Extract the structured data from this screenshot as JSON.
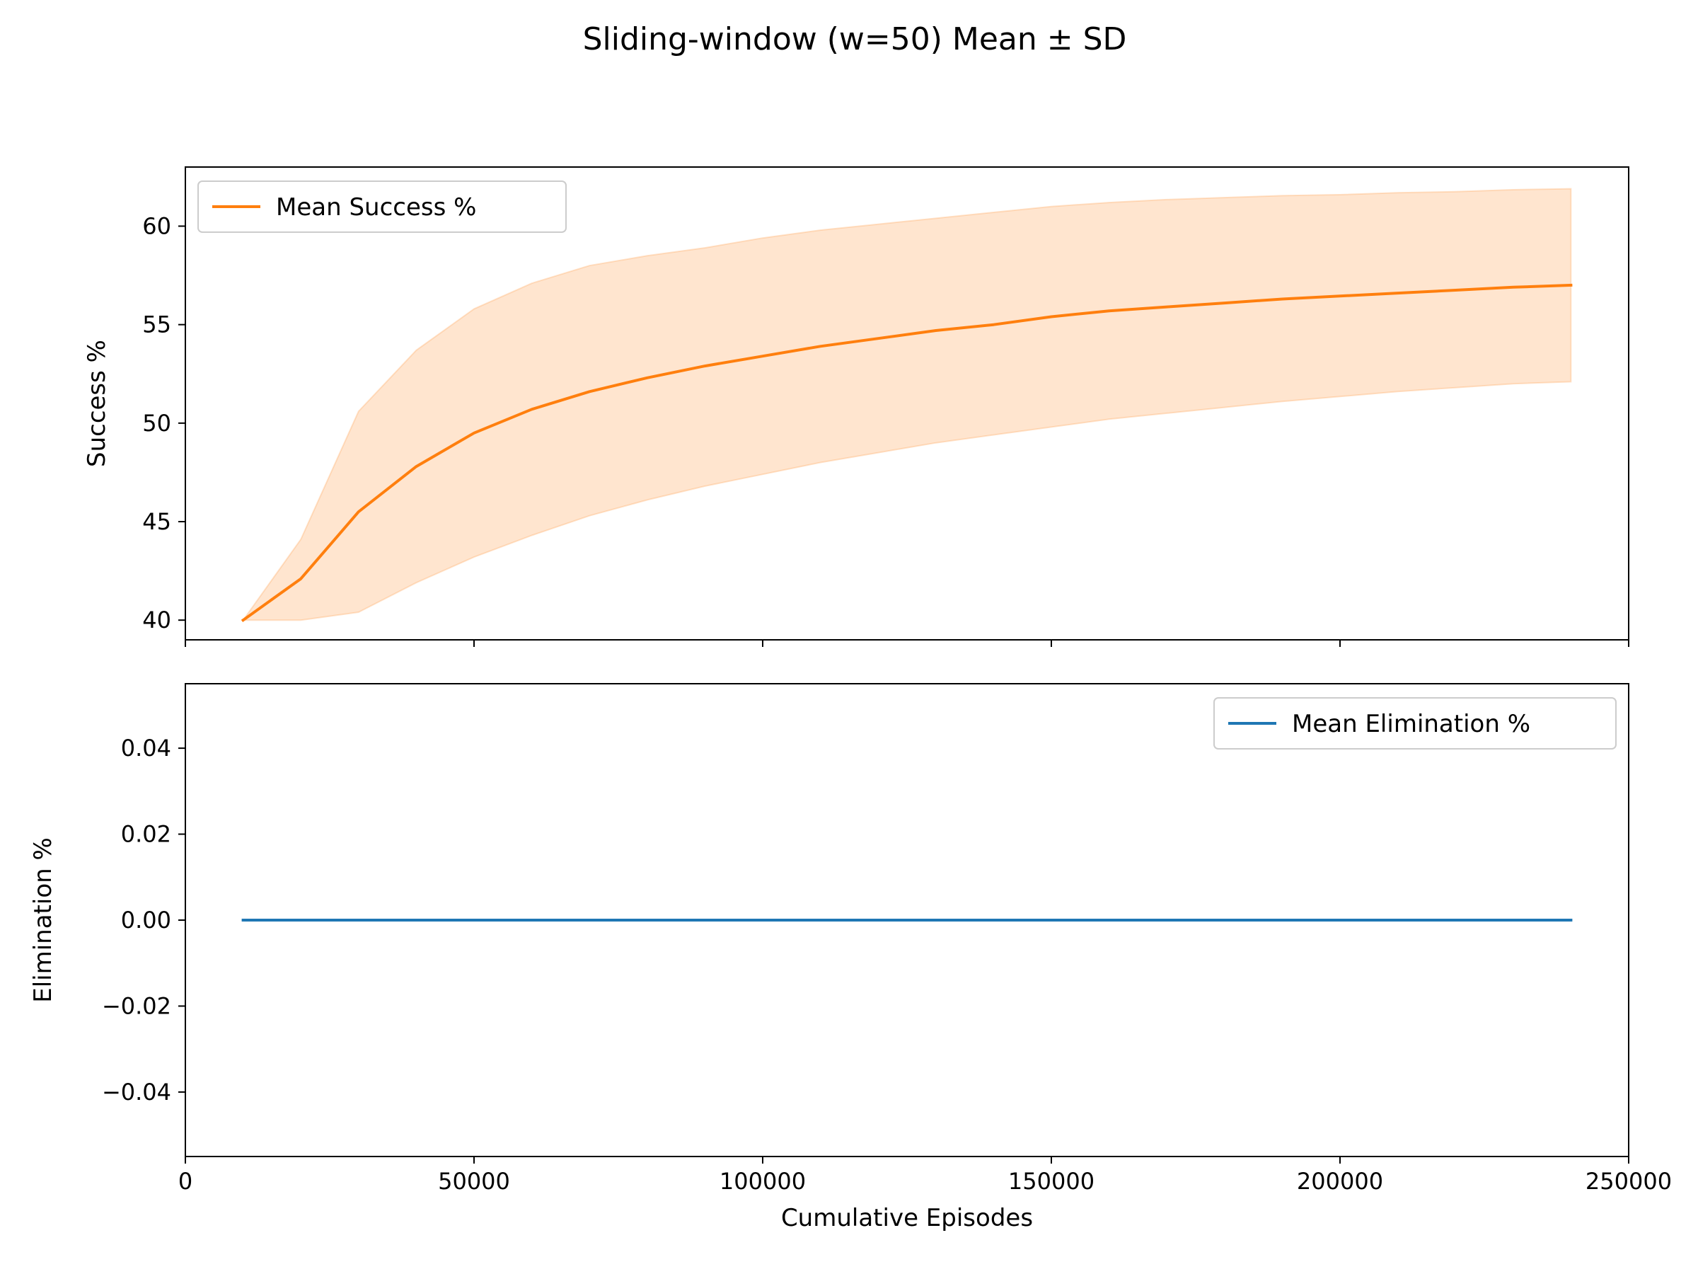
{
  "figure": {
    "title": "Sliding-window (w=50) Mean ± SD"
  },
  "chart_data": [
    {
      "type": "line",
      "panel": "top",
      "ylabel": "Success %",
      "xlabel": "",
      "xlim": [
        0,
        250000
      ],
      "ylim": [
        39,
        63
      ],
      "xticks": [
        0,
        50000,
        100000,
        150000,
        200000,
        250000
      ],
      "show_xtick_labels": false,
      "yticks": [
        40,
        45,
        50,
        55,
        60
      ],
      "ytick_labels": [
        "40",
        "45",
        "50",
        "55",
        "60"
      ],
      "grid": false,
      "legend_position": "upper-left",
      "x": [
        10000,
        20000,
        30000,
        40000,
        50000,
        60000,
        70000,
        80000,
        90000,
        100000,
        110000,
        120000,
        130000,
        140000,
        150000,
        160000,
        170000,
        180000,
        190000,
        200000,
        210000,
        220000,
        230000,
        240000
      ],
      "series": [
        {
          "name": "Mean Success %",
          "color": "#ff7f0e",
          "values": [
            40.0,
            42.1,
            45.5,
            47.8,
            49.5,
            50.7,
            51.6,
            52.3,
            52.9,
            53.4,
            53.9,
            54.3,
            54.7,
            55.0,
            55.4,
            55.7,
            55.9,
            56.1,
            56.3,
            56.45,
            56.6,
            56.75,
            56.9,
            57.0
          ],
          "sd_band": {
            "fill_color": "#ff7f0e",
            "lower": [
              40.0,
              40.0,
              40.4,
              41.9,
              43.2,
              44.3,
              45.3,
              46.1,
              46.8,
              47.4,
              48.0,
              48.5,
              49.0,
              49.4,
              49.8,
              50.2,
              50.5,
              50.8,
              51.1,
              51.35,
              51.6,
              51.8,
              52.0,
              52.1
            ],
            "upper": [
              40.0,
              44.1,
              50.6,
              53.7,
              55.8,
              57.1,
              58.0,
              58.5,
              58.9,
              59.4,
              59.8,
              60.1,
              60.4,
              60.7,
              61.0,
              61.2,
              61.35,
              61.45,
              61.55,
              61.6,
              61.7,
              61.75,
              61.85,
              61.9
            ]
          }
        }
      ]
    },
    {
      "type": "line",
      "panel": "bottom",
      "ylabel": "Elimination %",
      "xlabel": "Cumulative Episodes",
      "xlim": [
        0,
        250000
      ],
      "ylim": [
        -0.055,
        0.055
      ],
      "xticks": [
        0,
        50000,
        100000,
        150000,
        200000,
        250000
      ],
      "xtick_labels": [
        "0",
        "50000",
        "100000",
        "150000",
        "200000",
        "250000"
      ],
      "show_xtick_labels": true,
      "yticks": [
        -0.04,
        -0.02,
        0.0,
        0.02,
        0.04
      ],
      "ytick_labels": [
        "−0.04",
        "−0.02",
        "0.00",
        "0.02",
        "0.04"
      ],
      "grid": false,
      "legend_position": "upper-right",
      "x": [
        10000,
        20000,
        30000,
        40000,
        50000,
        60000,
        70000,
        80000,
        90000,
        100000,
        110000,
        120000,
        130000,
        140000,
        150000,
        160000,
        170000,
        180000,
        190000,
        200000,
        210000,
        220000,
        230000,
        240000
      ],
      "series": [
        {
          "name": "Mean Elimination %",
          "color": "#1f77b4",
          "values": [
            0,
            0,
            0,
            0,
            0,
            0,
            0,
            0,
            0,
            0,
            0,
            0,
            0,
            0,
            0,
            0,
            0,
            0,
            0,
            0,
            0,
            0,
            0,
            0
          ]
        }
      ]
    }
  ]
}
